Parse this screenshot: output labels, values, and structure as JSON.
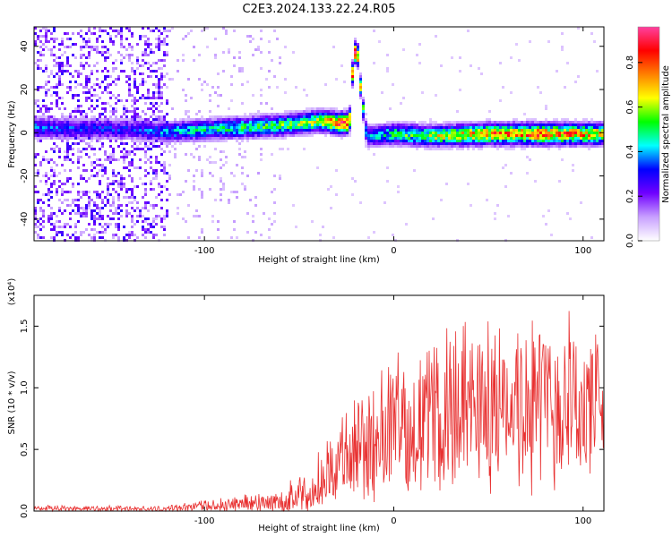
{
  "title": "C2E3.2024.133.22.24.R05",
  "chart_data": [
    {
      "type": "heatmap",
      "xlabel": "Height of straight line (km)",
      "ylabel": "Frequency (Hz)",
      "xlim": [
        -190,
        111
      ],
      "ylim": [
        -50,
        49
      ],
      "xticks": [
        -100,
        0,
        100
      ],
      "yticks": [
        -40,
        -20,
        0,
        20,
        40
      ],
      "colorbar": {
        "label": "Normalized spectral amplitude",
        "range": [
          0,
          0.96
        ],
        "ticks": [
          "0.0",
          "0.2",
          "0.4",
          "0.6",
          "0.8"
        ],
        "colors": [
          "#ffffff",
          "#c8a0ff",
          "#7000ff",
          "#0000ff",
          "#00ffff",
          "#00ff00",
          "#ffff00",
          "#ff8000",
          "#ff0000",
          "#ff40a0"
        ]
      },
      "ridge": {
        "x": [
          -190,
          -140,
          -120,
          -100,
          -80,
          -60,
          -40,
          -30,
          -24,
          -22,
          -20,
          -18,
          -15,
          0,
          20,
          50,
          80,
          111
        ],
        "freq": [
          3,
          2,
          1,
          2,
          3,
          4,
          6,
          5,
          5,
          35,
          40,
          20,
          -1,
          0,
          -1,
          0,
          0,
          0
        ],
        "amplitude": [
          0.35,
          0.3,
          0.4,
          0.45,
          0.5,
          0.55,
          0.6,
          0.85,
          0.8,
          0.9,
          0.85,
          0.6,
          0.4,
          0.5,
          0.6,
          0.75,
          0.8,
          0.7
        ]
      }
    },
    {
      "type": "line",
      "xlabel": "Height of straight line (km)",
      "ylabel": "SNR (10 * v/v)",
      "yscale_note": "(x10⁴)",
      "xlim": [
        -190,
        111
      ],
      "ylim": [
        0,
        1.75
      ],
      "xticks": [
        -100,
        0,
        100
      ],
      "yticks": [
        "0.0",
        "0.5",
        "1.0",
        "1.5"
      ],
      "line_color": "#e83030",
      "envelope": {
        "x": [
          -190,
          -160,
          -120,
          -100,
          -80,
          -60,
          -45,
          -35,
          -25,
          -15,
          0,
          15,
          30,
          50,
          70,
          90,
          100,
          111
        ],
        "mean": [
          0.02,
          0.02,
          0.02,
          0.04,
          0.06,
          0.08,
          0.15,
          0.3,
          0.45,
          0.55,
          0.65,
          0.75,
          0.8,
          0.85,
          0.9,
          0.88,
          0.85,
          0.9
        ],
        "amp": [
          0.03,
          0.03,
          0.03,
          0.06,
          0.08,
          0.12,
          0.2,
          0.35,
          0.5,
          0.6,
          0.65,
          0.7,
          0.8,
          0.85,
          0.85,
          0.8,
          0.8,
          0.7
        ]
      }
    }
  ]
}
